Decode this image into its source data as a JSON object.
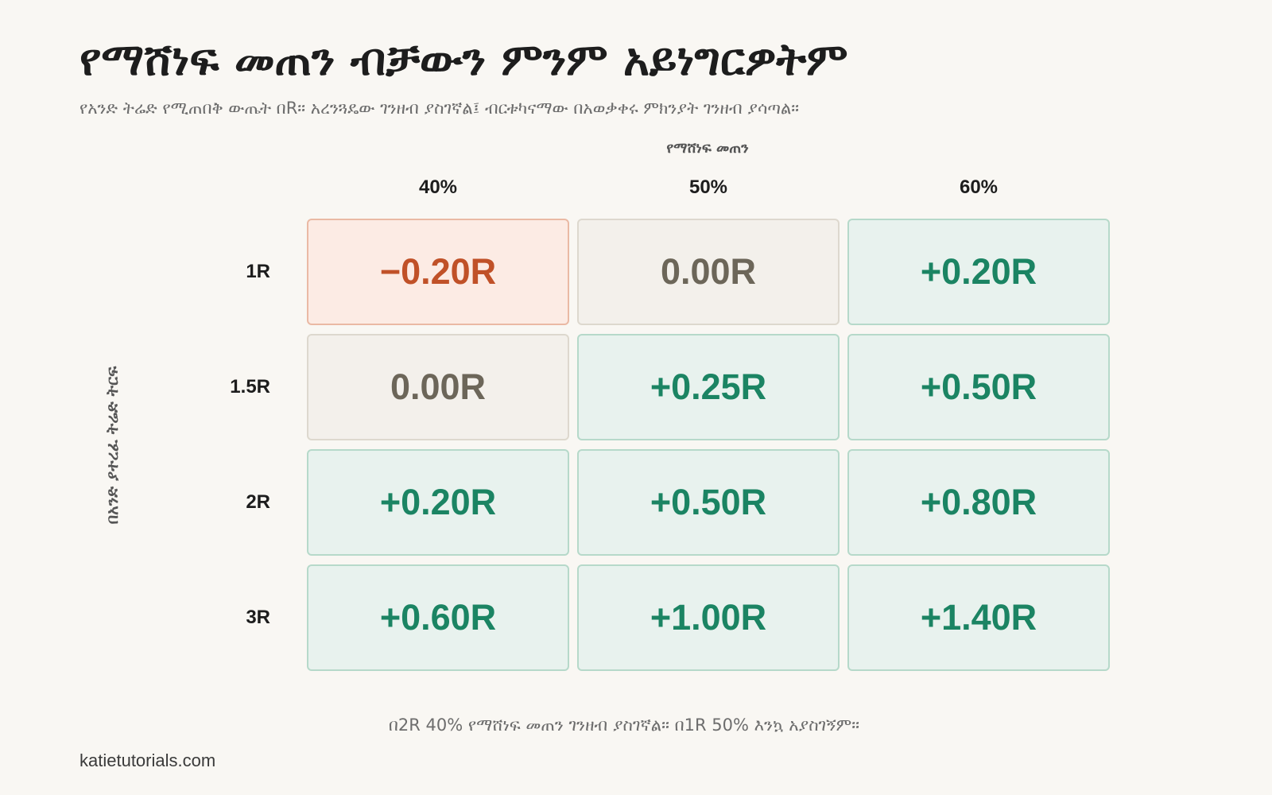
{
  "title": "የማሸነፍ መጠን ብቻውን ምንም አይነግርዎትም",
  "subtitle": "የአንድ ትሬድ የሚጠበቅ ውጤት በR። አረንጓዴው ገንዘብ ያስገኛል፤ ብርቱካናማው በአወቃቀሩ ምክንያት ገንዘብ ያሳጣል።",
  "footnote": "በ2R 40% የማሸነፍ መጠን ገንዘብ ያስገኛል። በ1R 50% እንኳ አያስገኝም።",
  "brand": "katietutorials.com",
  "colors": {
    "positive_text": "#1b8463",
    "positive_bg": "#e8f2ee",
    "neutral_text": "#6c6659",
    "neutral_bg": "#f3f0eb",
    "negative_text": "#c05128",
    "negative_bg": "#fcebe4"
  },
  "chart_data": {
    "type": "heatmap",
    "x_title": "የማሸነፍ መጠን",
    "y_title": "በአንድ ያተረፈ ትሬድ ትርፍ",
    "x_categories": [
      "40%",
      "50%",
      "60%"
    ],
    "y_categories": [
      "1R",
      "1.5R",
      "2R",
      "3R"
    ],
    "values": [
      [
        -0.2,
        0.0,
        0.2
      ],
      [
        0.0,
        0.25,
        0.5
      ],
      [
        0.2,
        0.5,
        0.8
      ],
      [
        0.6,
        1.0,
        1.4
      ]
    ],
    "value_labels": [
      [
        "−0.20R",
        "0.00R",
        "+0.20R"
      ],
      [
        "0.00R",
        "+0.25R",
        "+0.50R"
      ],
      [
        "+0.20R",
        "+0.50R",
        "+0.80R"
      ],
      [
        "+0.60R",
        "+1.00R",
        "+1.40R"
      ]
    ]
  }
}
